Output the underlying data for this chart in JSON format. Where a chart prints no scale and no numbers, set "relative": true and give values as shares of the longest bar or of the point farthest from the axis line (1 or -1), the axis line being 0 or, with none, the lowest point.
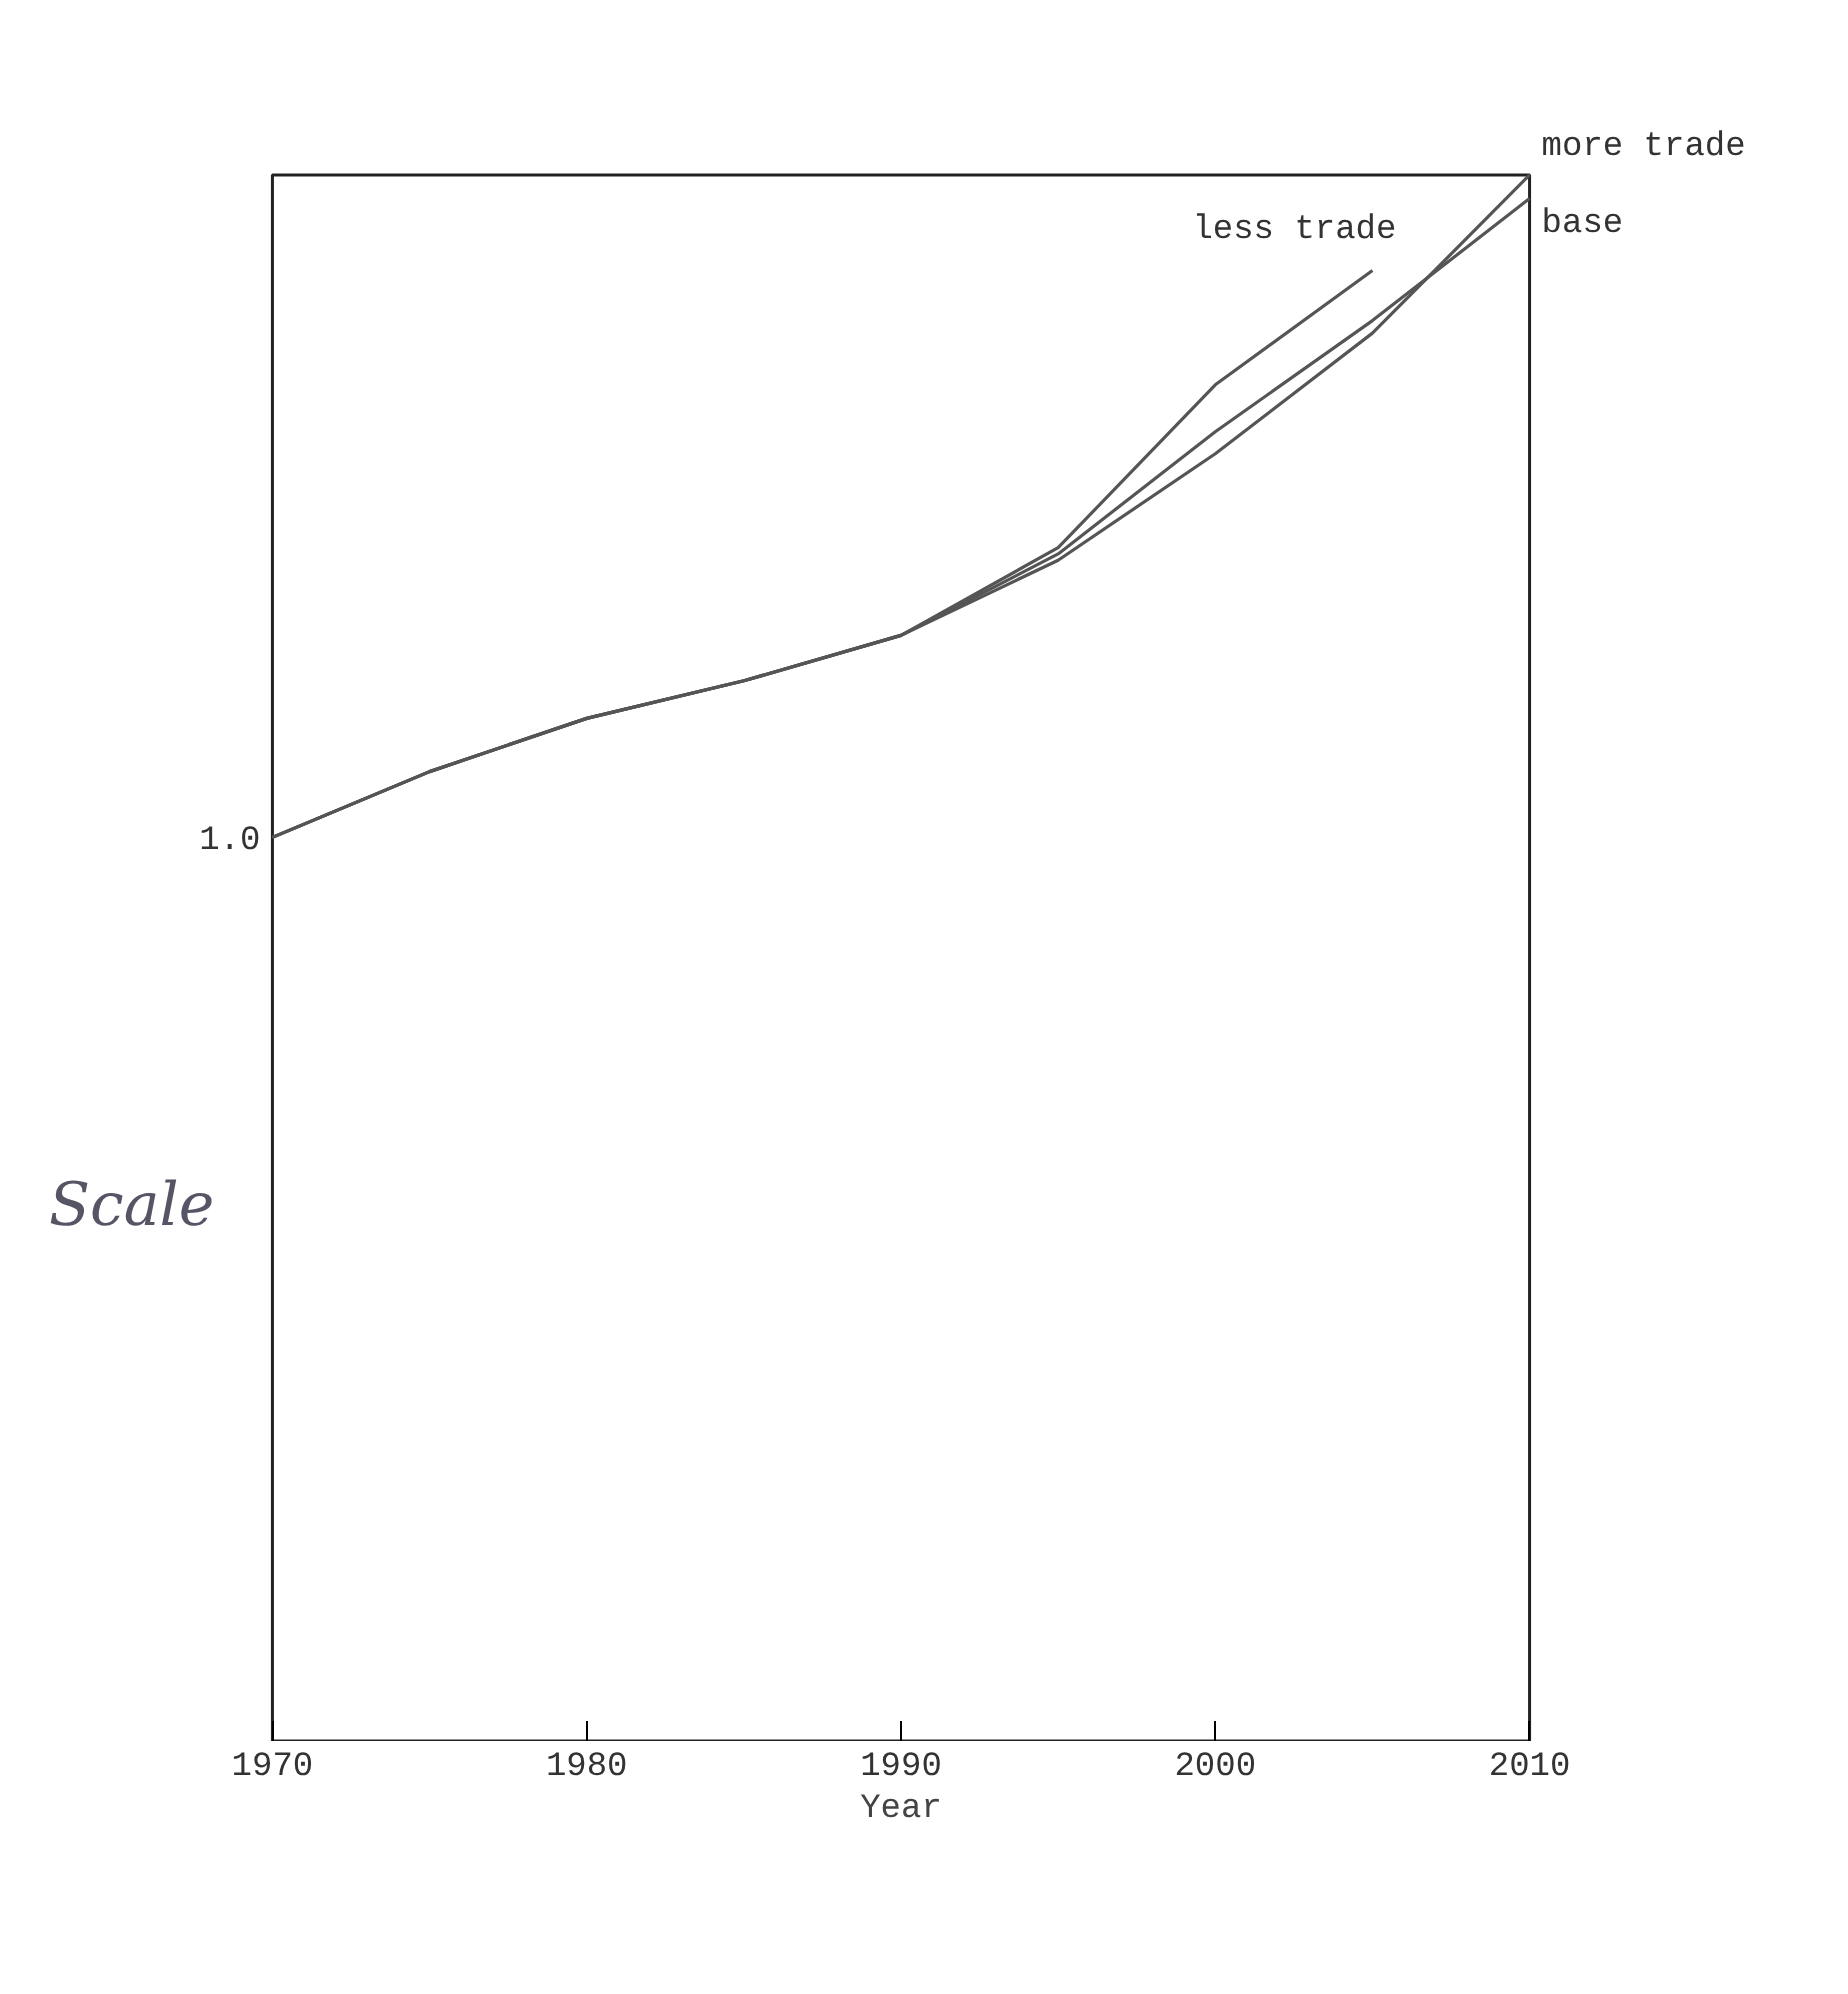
{
  "chart_data": {
    "type": "line",
    "relative": true,
    "xlabel": "Year",
    "x": [
      1970,
      1975,
      1980,
      1985,
      1990,
      1995,
      2000,
      2005,
      2010
    ],
    "xlim": [
      1970,
      2010
    ],
    "xticks": [
      1970,
      1980,
      1990,
      2000,
      2010
    ],
    "grid": false,
    "marker": "none",
    "line_style": "solid",
    "series": [
      {
        "name": "less trade",
        "color": "#555555",
        "values": [
          0.577,
          0.619,
          0.653,
          0.677,
          0.706,
          0.762,
          0.866,
          0.939,
          null
        ]
      },
      {
        "name": "more trade",
        "color": "#555555",
        "values": [
          0.577,
          0.619,
          0.653,
          0.677,
          0.706,
          0.754,
          0.822,
          0.899,
          1.0
        ]
      },
      {
        "name": "base",
        "color": "#555555",
        "values": [
          0.577,
          0.619,
          0.653,
          0.677,
          0.706,
          0.758,
          0.836,
          0.907,
          0.985
        ]
      }
    ],
    "annotations": [
      {
        "text": "1.0",
        "x": 1970,
        "y": 0.577
      },
      "Scale"
    ]
  }
}
